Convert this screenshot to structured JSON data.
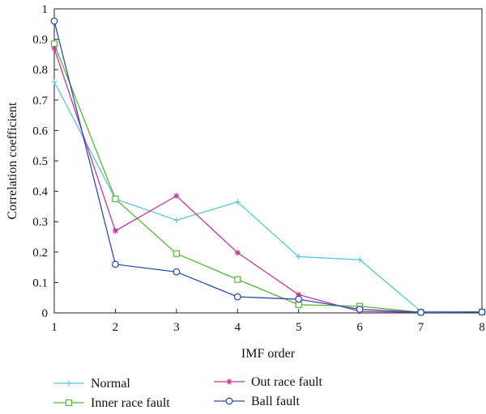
{
  "chart_data": {
    "type": "line",
    "title": "",
    "xlabel": "IMF order",
    "ylabel": "Correlation coefficient",
    "xlim": [
      1,
      8
    ],
    "ylim": [
      0,
      1
    ],
    "x_ticks": [
      "1",
      "2",
      "3",
      "4",
      "5",
      "6",
      "7",
      "8"
    ],
    "y_ticks": [
      "0",
      "0.1",
      "0.2",
      "0.3",
      "0.4",
      "0.5",
      "0.6",
      "0.7",
      "0.8",
      "0.9",
      "1"
    ],
    "grid": false,
    "legend_position": "bottom",
    "x": [
      1,
      2,
      3,
      4,
      5,
      6,
      7,
      8
    ],
    "series": [
      {
        "name": "Normal",
        "color": "#5bc8dc",
        "marker": "plus",
        "values": [
          0.76,
          0.375,
          0.305,
          0.365,
          0.185,
          0.175,
          0.005,
          0.003
        ]
      },
      {
        "name": "Inner race fault",
        "color": "#55b83a",
        "marker": "square",
        "values": [
          0.885,
          0.375,
          0.195,
          0.11,
          0.027,
          0.022,
          0.002,
          0.003
        ]
      },
      {
        "name": "Out race fault",
        "color": "#c0399a",
        "marker": "asterisk",
        "values": [
          0.87,
          0.27,
          0.385,
          0.198,
          0.06,
          0.005,
          0.002,
          0.003
        ]
      },
      {
        "name": "Ball fault",
        "color": "#2f4eaa",
        "marker": "circle",
        "values": [
          0.96,
          0.16,
          0.135,
          0.053,
          0.045,
          0.012,
          0.002,
          0.003
        ]
      }
    ]
  }
}
